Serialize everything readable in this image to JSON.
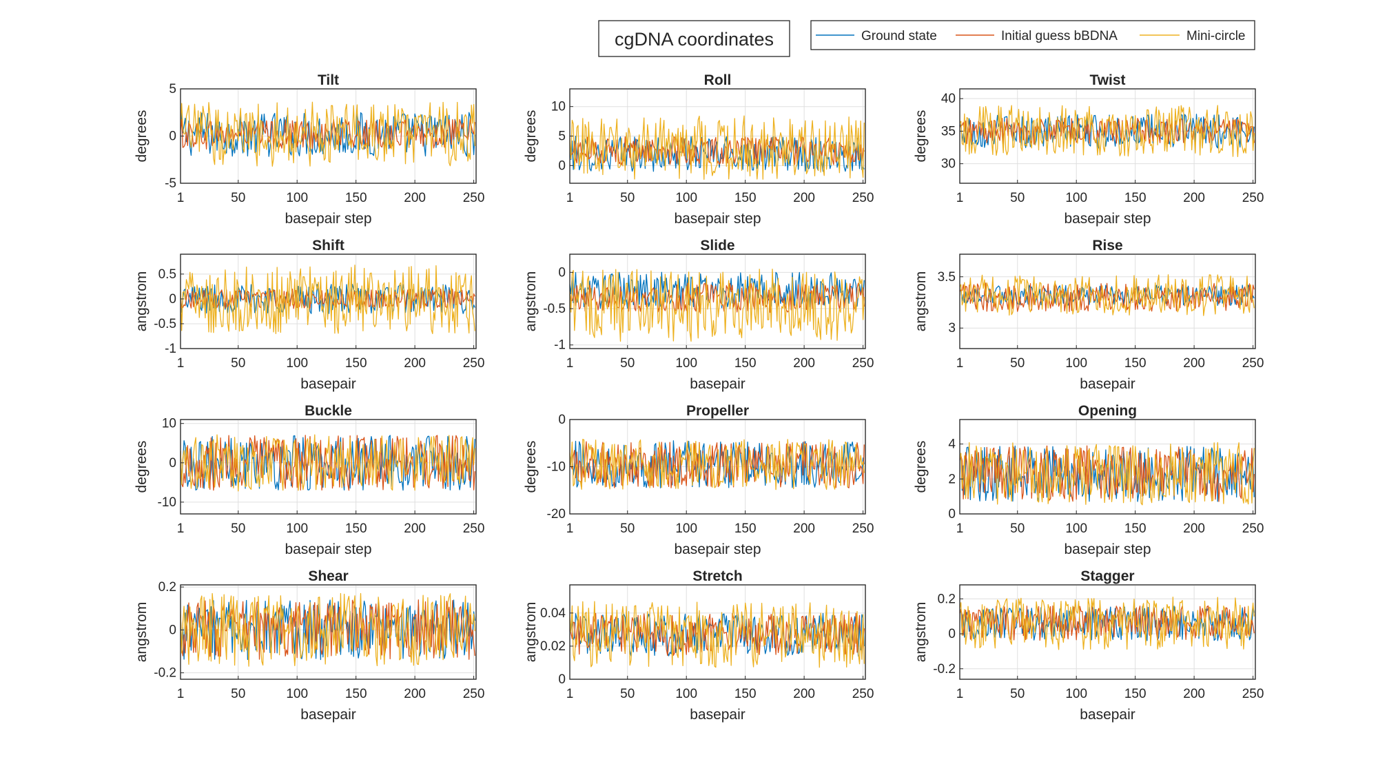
{
  "figure": {
    "title": "cgDNA coordinates",
    "colors": {
      "ground_state": "#0072BD",
      "initial_guess": "#D95319",
      "mini_circle": "#EDB120"
    }
  },
  "legend": {
    "entries": [
      "Ground state",
      "Initial guess bBDNA",
      "Mini-circle"
    ],
    "placement": "top-right"
  },
  "chart_data": [
    {
      "type": "line",
      "title": "Tilt",
      "xlabel": "basepair step",
      "ylabel": "degrees",
      "xlim": [
        1,
        252
      ],
      "ylim": [
        -5,
        5
      ],
      "xticks": [
        1,
        50,
        100,
        150,
        200,
        250
      ],
      "yticks": [
        -5,
        0,
        5
      ],
      "ytick_labels": [
        "-5",
        "0",
        "5"
      ],
      "n": 251,
      "series": [
        {
          "name": "Ground state",
          "center": 0.2,
          "amp": 2.4
        },
        {
          "name": "Initial guess bBDNA",
          "center": 0.2,
          "amp": 1.6
        },
        {
          "name": "Mini-circle",
          "center": 0.2,
          "amp": 3.4
        }
      ]
    },
    {
      "type": "line",
      "title": "Roll",
      "xlabel": "basepair step",
      "ylabel": "degrees",
      "xlim": [
        1,
        252
      ],
      "ylim": [
        -3,
        13
      ],
      "xticks": [
        1,
        50,
        100,
        150,
        200,
        250
      ],
      "yticks": [
        0,
        5,
        10
      ],
      "ytick_labels": [
        "0",
        "5",
        "10"
      ],
      "n": 251,
      "series": [
        {
          "name": "Ground state",
          "center": 2.0,
          "amp": 3.0
        },
        {
          "name": "Initial guess bBDNA",
          "center": 2.5,
          "amp": 2.4
        },
        {
          "name": "Mini-circle",
          "center": 3.0,
          "amp": 5.5
        }
      ]
    },
    {
      "type": "line",
      "title": "Twist",
      "xlabel": "basepair step",
      "ylabel": "degrees",
      "xlim": [
        1,
        252
      ],
      "ylim": [
        27,
        41.5
      ],
      "xticks": [
        1,
        50,
        100,
        150,
        200,
        250
      ],
      "yticks": [
        30,
        35,
        40
      ],
      "ytick_labels": [
        "30",
        "35",
        "40"
      ],
      "n": 251,
      "series": [
        {
          "name": "Ground state",
          "center": 35.0,
          "amp": 2.6
        },
        {
          "name": "Initial guess bBDNA",
          "center": 35.0,
          "amp": 2.0
        },
        {
          "name": "Mini-circle",
          "center": 35.0,
          "amp": 4.0
        }
      ]
    },
    {
      "type": "line",
      "title": "Shift",
      "xlabel": "basepair",
      "ylabel": "angstrom",
      "xlim": [
        1,
        252
      ],
      "ylim": [
        -1,
        0.9
      ],
      "xticks": [
        1,
        50,
        100,
        150,
        200,
        250
      ],
      "yticks": [
        -1,
        -0.5,
        0,
        0.5
      ],
      "ytick_labels": [
        "-1",
        "-0.5",
        "0",
        "0.5"
      ],
      "n": 251,
      "series": [
        {
          "name": "Ground state",
          "center": 0.0,
          "amp": 0.3
        },
        {
          "name": "Initial guess bBDNA",
          "center": 0.0,
          "amp": 0.2
        },
        {
          "name": "Mini-circle",
          "center": 0.0,
          "amp": 0.7
        }
      ]
    },
    {
      "type": "line",
      "title": "Slide",
      "xlabel": "basepair",
      "ylabel": "angstrom",
      "xlim": [
        1,
        252
      ],
      "ylim": [
        -1.05,
        0.25
      ],
      "xticks": [
        1,
        50,
        100,
        150,
        200,
        250
      ],
      "yticks": [
        -1,
        -0.5,
        0
      ],
      "ytick_labels": [
        "-1",
        "-0.5",
        "0"
      ],
      "n": 251,
      "series": [
        {
          "name": "Ground state",
          "center": -0.25,
          "amp": 0.25
        },
        {
          "name": "Initial guess bBDNA",
          "center": -0.35,
          "amp": 0.2
        },
        {
          "name": "Mini-circle",
          "center": -0.45,
          "amp": 0.5
        }
      ]
    },
    {
      "type": "line",
      "title": "Rise",
      "xlabel": "basepair",
      "ylabel": "angstrom",
      "xlim": [
        1,
        252
      ],
      "ylim": [
        2.8,
        3.72
      ],
      "xticks": [
        1,
        50,
        100,
        150,
        200,
        250
      ],
      "yticks": [
        3,
        3.5
      ],
      "ytick_labels": [
        "3",
        "3.5"
      ],
      "n": 251,
      "series": [
        {
          "name": "Ground state",
          "center": 3.32,
          "amp": 0.1
        },
        {
          "name": "Initial guess bBDNA",
          "center": 3.3,
          "amp": 0.14
        },
        {
          "name": "Mini-circle",
          "center": 3.32,
          "amp": 0.2
        }
      ]
    },
    {
      "type": "line",
      "title": "Buckle",
      "xlabel": "basepair step",
      "ylabel": "degrees",
      "xlim": [
        1,
        252
      ],
      "ylim": [
        -13,
        11
      ],
      "xticks": [
        1,
        50,
        100,
        150,
        200,
        250
      ],
      "yticks": [
        -10,
        0,
        10
      ],
      "ytick_labels": [
        "-10",
        "0",
        "10"
      ],
      "n": 251,
      "series": [
        {
          "name": "Ground state",
          "center": 0.0,
          "amp": 7.0
        },
        {
          "name": "Initial guess bBDNA",
          "center": 0.0,
          "amp": 7.0
        },
        {
          "name": "Mini-circle",
          "center": 0.0,
          "amp": 7.2
        }
      ]
    },
    {
      "type": "line",
      "title": "Propeller",
      "xlabel": "basepair step",
      "ylabel": "degrees",
      "xlim": [
        1,
        252
      ],
      "ylim": [
        -20,
        0
      ],
      "xticks": [
        1,
        50,
        100,
        150,
        200,
        250
      ],
      "yticks": [
        -20,
        -10,
        0
      ],
      "ytick_labels": [
        "-20",
        "-10",
        "0"
      ],
      "n": 251,
      "series": [
        {
          "name": "Ground state",
          "center": -9.5,
          "amp": 5.0
        },
        {
          "name": "Initial guess bBDNA",
          "center": -9.5,
          "amp": 5.0
        },
        {
          "name": "Mini-circle",
          "center": -9.5,
          "amp": 5.5
        }
      ]
    },
    {
      "type": "line",
      "title": "Opening",
      "xlabel": "basepair step",
      "ylabel": "degrees",
      "xlim": [
        1,
        252
      ],
      "ylim": [
        0,
        5.4
      ],
      "xticks": [
        1,
        50,
        100,
        150,
        200,
        250
      ],
      "yticks": [
        0,
        2,
        4
      ],
      "ytick_labels": [
        "0",
        "2",
        "4"
      ],
      "n": 251,
      "series": [
        {
          "name": "Ground state",
          "center": 2.3,
          "amp": 1.6
        },
        {
          "name": "Initial guess bBDNA",
          "center": 2.3,
          "amp": 1.6
        },
        {
          "name": "Mini-circle",
          "center": 2.3,
          "amp": 1.8
        }
      ]
    },
    {
      "type": "line",
      "title": "Shear",
      "xlabel": "basepair",
      "ylabel": "angstrom",
      "xlim": [
        1,
        252
      ],
      "ylim": [
        -0.23,
        0.21
      ],
      "xticks": [
        1,
        50,
        100,
        150,
        200,
        250
      ],
      "yticks": [
        -0.2,
        0,
        0.2
      ],
      "ytick_labels": [
        "-0.2",
        "0",
        "0.2"
      ],
      "n": 251,
      "series": [
        {
          "name": "Ground state",
          "center": 0.0,
          "amp": 0.14
        },
        {
          "name": "Initial guess bBDNA",
          "center": 0.0,
          "amp": 0.14
        },
        {
          "name": "Mini-circle",
          "center": 0.0,
          "amp": 0.17
        }
      ]
    },
    {
      "type": "line",
      "title": "Stretch",
      "xlabel": "basepair",
      "ylabel": "angstrom",
      "xlim": [
        1,
        252
      ],
      "ylim": [
        0,
        0.057
      ],
      "xticks": [
        1,
        50,
        100,
        150,
        200,
        250
      ],
      "yticks": [
        0,
        0.02,
        0.04
      ],
      "ytick_labels": [
        "0",
        "0.02",
        "0.04"
      ],
      "n": 251,
      "series": [
        {
          "name": "Ground state",
          "center": 0.027,
          "amp": 0.013
        },
        {
          "name": "Initial guess bBDNA",
          "center": 0.027,
          "amp": 0.013
        },
        {
          "name": "Mini-circle",
          "center": 0.027,
          "amp": 0.02
        }
      ]
    },
    {
      "type": "line",
      "title": "Stagger",
      "xlabel": "basepair",
      "ylabel": "angstrom",
      "xlim": [
        1,
        252
      ],
      "ylim": [
        -0.26,
        0.28
      ],
      "xticks": [
        1,
        50,
        100,
        150,
        200,
        250
      ],
      "yticks": [
        -0.2,
        0,
        0.2
      ],
      "ytick_labels": [
        "-0.2",
        "0",
        "0.2"
      ],
      "n": 251,
      "series": [
        {
          "name": "Ground state",
          "center": 0.06,
          "amp": 0.1
        },
        {
          "name": "Initial guess bBDNA",
          "center": 0.06,
          "amp": 0.1
        },
        {
          "name": "Mini-circle",
          "center": 0.06,
          "amp": 0.15
        }
      ]
    }
  ]
}
